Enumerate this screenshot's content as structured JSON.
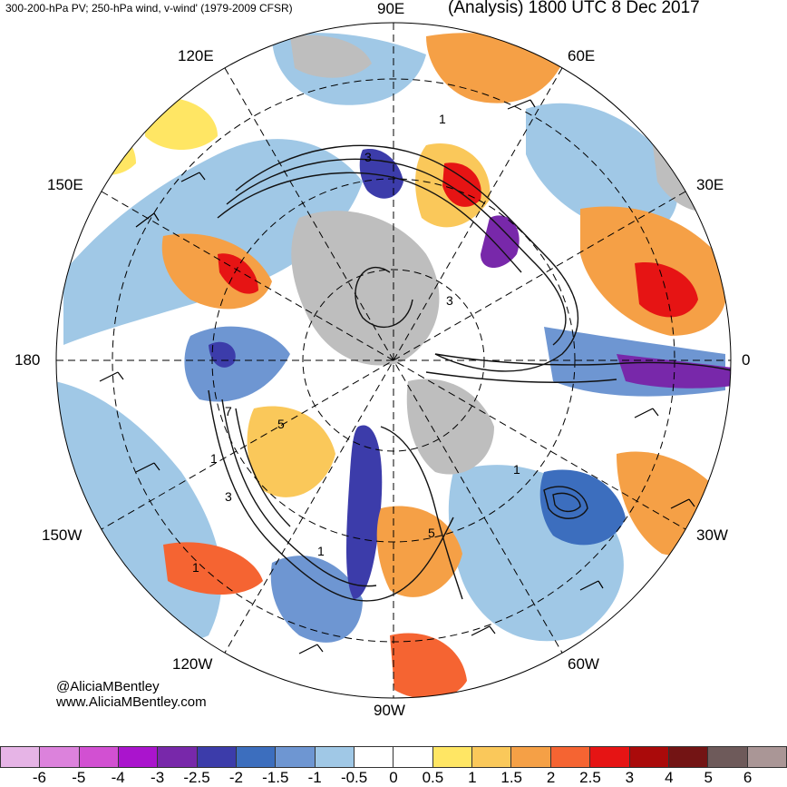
{
  "header": {
    "left_title": "300-200-hPa PV; 250-hPa wind, v-wind' (1979-2009 CFSR)",
    "right_title": "(Analysis) 1800 UTC 8 Dec 2017"
  },
  "longitude_labels": {
    "e90": "90E",
    "e60": "60E",
    "e120": "120E",
    "e150": "150E",
    "e30": "30E",
    "w180": "180",
    "zero": "0",
    "w150": "150W",
    "w30": "30W",
    "w120": "120W",
    "w60": "60W",
    "w90": "90W"
  },
  "credit": {
    "handle": "@AliciaMBentley",
    "site": "www.AliciaMBentley.com"
  },
  "colorbar": {
    "colors": [
      "#e6b4e6",
      "#dc82dc",
      "#d250d2",
      "#aa14cd",
      "#7828aa",
      "#3c3caa",
      "#3c6ebe",
      "#6e96d2",
      "#a0c8e6",
      "#ffffff",
      "#ffffff",
      "#ffe664",
      "#fac85a",
      "#f5a046",
      "#f56432",
      "#e61414",
      "#aa0a0a",
      "#731414",
      "#6e5a5a",
      "#aa9696"
    ],
    "ticks": [
      "-6",
      "-5",
      "-4",
      "-3",
      "-2.5",
      "-2",
      "-1.5",
      "-1",
      "-0.5",
      "0",
      "0.5",
      "1",
      "1.5",
      "2",
      "2.5",
      "3",
      "4",
      "5",
      "6"
    ]
  },
  "contour_labels": [
    "3",
    "1",
    "5",
    "7",
    "1",
    "3",
    "1",
    "3",
    "5",
    "1",
    "1"
  ]
}
